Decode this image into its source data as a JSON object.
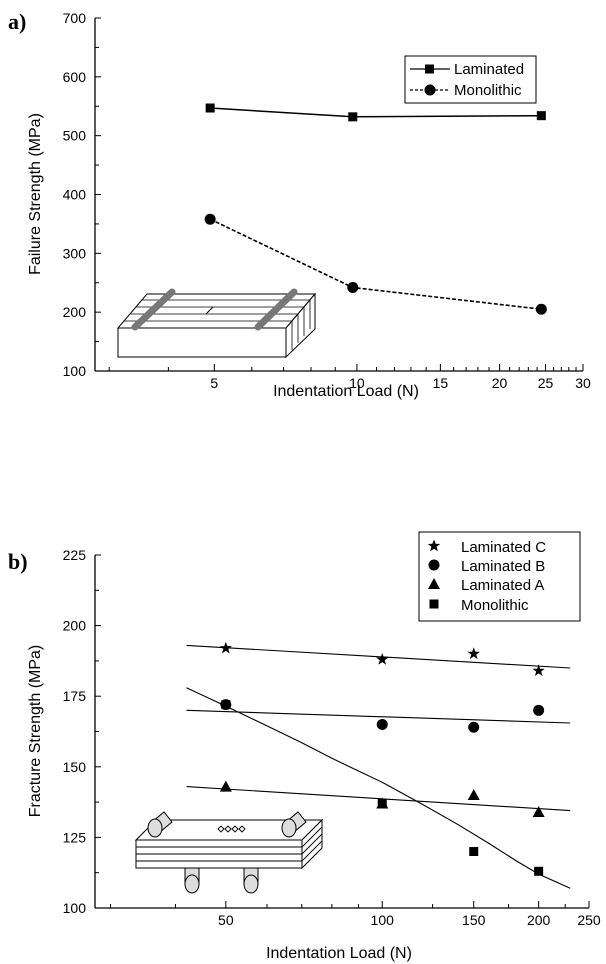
{
  "chart_data": [
    {
      "panel": "a)",
      "type": "line",
      "xlabel": "Indentation Load (N)",
      "ylabel": "Failure Strength (MPa)",
      "xscale": "log",
      "xlim": [
        2.8,
        30
      ],
      "ylim": [
        100,
        700
      ],
      "xticks": [
        {
          "value": 5,
          "label": "5"
        },
        {
          "value": 10,
          "label": "10"
        },
        {
          "value": 15,
          "label": "15"
        },
        {
          "value": 20,
          "label": "20"
        },
        {
          "value": 25,
          "label": "25"
        },
        {
          "value": 30,
          "label": "30"
        }
      ],
      "yticks": [
        {
          "value": 100,
          "label": "100"
        },
        {
          "value": 200,
          "label": "200"
        },
        {
          "value": 300,
          "label": "300"
        },
        {
          "value": 400,
          "label": "400"
        },
        {
          "value": 500,
          "label": "500"
        },
        {
          "value": 600,
          "label": "600"
        },
        {
          "value": 700,
          "label": "700"
        }
      ],
      "legend_position": "top-right",
      "series": [
        {
          "name": "Laminated",
          "marker": "square",
          "line": "solid",
          "x": [
            4.9,
            9.8,
            24.5
          ],
          "y": [
            547,
            532,
            534
          ]
        },
        {
          "name": "Monolithic",
          "marker": "circle",
          "line": "dashed",
          "x": [
            4.9,
            9.8,
            24.5
          ],
          "y": [
            358,
            242,
            205
          ]
        }
      ]
    },
    {
      "panel": "b)",
      "type": "scatter",
      "xlabel": "Indentation Load (N)",
      "ylabel": "Fracture Strength (MPa)",
      "xscale": "log",
      "xlim": [
        28,
        250
      ],
      "ylim": [
        100,
        225
      ],
      "xticks": [
        {
          "value": 50,
          "label": "50"
        },
        {
          "value": 100,
          "label": "100"
        },
        {
          "value": 150,
          "label": "150"
        },
        {
          "value": 200,
          "label": "200"
        },
        {
          "value": 250,
          "label": "250"
        }
      ],
      "yticks": [
        {
          "value": 100,
          "label": "100"
        },
        {
          "value": 125,
          "label": "125"
        },
        {
          "value": 150,
          "label": "150"
        },
        {
          "value": 175,
          "label": "175"
        },
        {
          "value": 200,
          "label": "200"
        },
        {
          "value": 225,
          "label": "225"
        }
      ],
      "legend_position": "top-right",
      "series": [
        {
          "name": "Laminated C",
          "marker": "star",
          "x": [
            50,
            100,
            150,
            200
          ],
          "y": [
            192,
            188,
            190,
            184
          ],
          "fit": {
            "x": [
              42,
              230
            ],
            "y": [
              193,
              185
            ]
          }
        },
        {
          "name": "Laminated B",
          "marker": "circle",
          "x": [
            50,
            100,
            150,
            200
          ],
          "y": [
            172,
            165,
            164,
            170
          ],
          "fit": {
            "x": [
              42,
              230
            ],
            "y": [
              170,
              165.5
            ]
          }
        },
        {
          "name": "Laminated A",
          "marker": "triangle",
          "x": [
            50,
            100,
            150,
            200
          ],
          "y": [
            143,
            137,
            140,
            134
          ],
          "fit": {
            "x": [
              42,
              230
            ],
            "y": [
              143,
              134.5
            ]
          }
        },
        {
          "name": "Monolithic",
          "marker": "square",
          "x": [
            50,
            100,
            150,
            200
          ],
          "y": [
            172,
            137,
            120,
            113
          ],
          "fit": {
            "x": [
              42,
              50,
              60,
              70,
              80,
              90,
              100,
              120,
              140,
              160,
              180,
              200,
              230
            ],
            "y": [
              178,
              171.5,
              164.5,
              158.5,
              153,
              148.5,
              144.5,
              136.5,
              129.5,
              123,
              117,
              112,
              107
            ]
          }
        }
      ]
    }
  ]
}
